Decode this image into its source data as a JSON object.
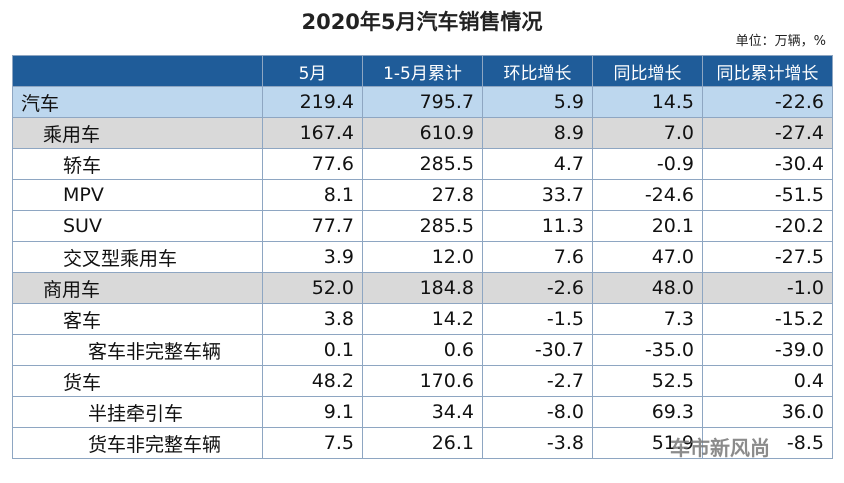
{
  "header": {
    "title": "2020年5月汽车销售情况",
    "unit": "单位：万辆，%"
  },
  "table": {
    "columns": [
      "",
      "5月",
      "1-5月累计",
      "环比增长",
      "同比增长",
      "同比累计增长"
    ],
    "rows": [
      [
        "汽车",
        "219.4",
        "795.7",
        "5.9",
        "14.5",
        "-22.6"
      ],
      [
        "乘用车",
        "167.4",
        "610.9",
        "8.9",
        "7.0",
        "-27.4"
      ],
      [
        "轿车",
        "77.6",
        "285.5",
        "4.7",
        "-0.9",
        "-30.4"
      ],
      [
        "MPV",
        "8.1",
        "27.8",
        "33.7",
        "-24.6",
        "-51.5"
      ],
      [
        "SUV",
        "77.7",
        "285.5",
        "11.3",
        "20.1",
        "-20.2"
      ],
      [
        "交叉型乘用车",
        "3.9",
        "12.0",
        "7.6",
        "47.0",
        "-27.5"
      ],
      [
        "商用车",
        "52.0",
        "184.8",
        "-2.6",
        "48.0",
        "-1.0"
      ],
      [
        "客车",
        "3.8",
        "14.2",
        "-1.5",
        "7.3",
        "-15.2"
      ],
      [
        "客车非完整车辆",
        "0.1",
        "0.6",
        "-30.7",
        "-35.0",
        "-39.0"
      ],
      [
        "货车",
        "48.2",
        "170.6",
        "-2.7",
        "52.5",
        "0.4"
      ],
      [
        "半挂牵引车",
        "9.1",
        "34.4",
        "-8.0",
        "69.3",
        "36.0"
      ],
      [
        "货车非完整车辆",
        "7.5",
        "26.1",
        "-3.8",
        "51.9",
        "-8.5"
      ]
    ]
  },
  "watermark": "车市新风尚"
}
